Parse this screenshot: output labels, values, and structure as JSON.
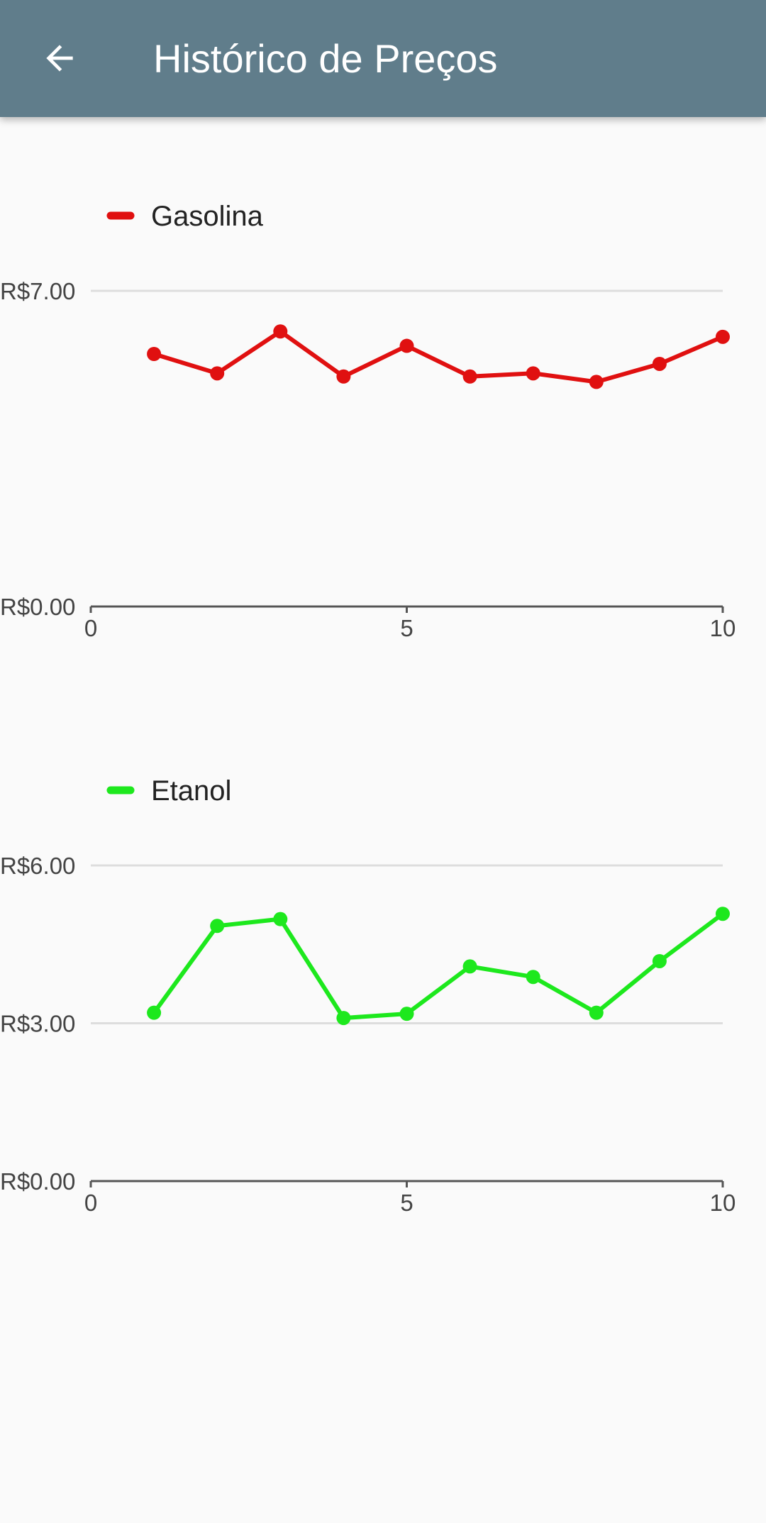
{
  "appbar": {
    "title": "Histórico de Preços",
    "back_icon": "arrow-left-icon",
    "background": "#607d8b"
  },
  "chart_data": [
    {
      "type": "line",
      "series": [
        {
          "name": "Gasolina",
          "color": "#e01010",
          "x": [
            1,
            2,
            3,
            4,
            5,
            6,
            7,
            8,
            9,
            10
          ],
          "values": [
            5.6,
            5.17,
            6.1,
            5.1,
            5.78,
            5.1,
            5.17,
            4.98,
            5.38,
            5.98
          ]
        }
      ],
      "yticks": [
        {
          "value": 0,
          "label": "R$0.00"
        },
        {
          "value": 7,
          "label": "R$7.00"
        }
      ],
      "xticks": [
        {
          "value": 0,
          "label": "0"
        },
        {
          "value": 5,
          "label": "5"
        },
        {
          "value": 10,
          "label": "10"
        }
      ],
      "xlim": [
        0,
        10
      ],
      "ylim": [
        0,
        7
      ],
      "grid": true,
      "legend": "top-left"
    },
    {
      "type": "line",
      "series": [
        {
          "name": "Etanol",
          "color": "#1de81d",
          "x": [
            1,
            2,
            3,
            4,
            5,
            6,
            7,
            8,
            9,
            10
          ],
          "values": [
            3.2,
            4.85,
            4.98,
            3.1,
            3.18,
            4.08,
            3.88,
            3.2,
            4.18,
            5.08
          ]
        }
      ],
      "yticks": [
        {
          "value": 0,
          "label": "R$0.00"
        },
        {
          "value": 3,
          "label": "R$3.00"
        },
        {
          "value": 6,
          "label": "R$6.00"
        }
      ],
      "xticks": [
        {
          "value": 0,
          "label": "0"
        },
        {
          "value": 5,
          "label": "5"
        },
        {
          "value": 10,
          "label": "10"
        }
      ],
      "xlim": [
        0,
        10
      ],
      "ylim": [
        0,
        6
      ],
      "grid": true,
      "legend": "top-left"
    }
  ]
}
